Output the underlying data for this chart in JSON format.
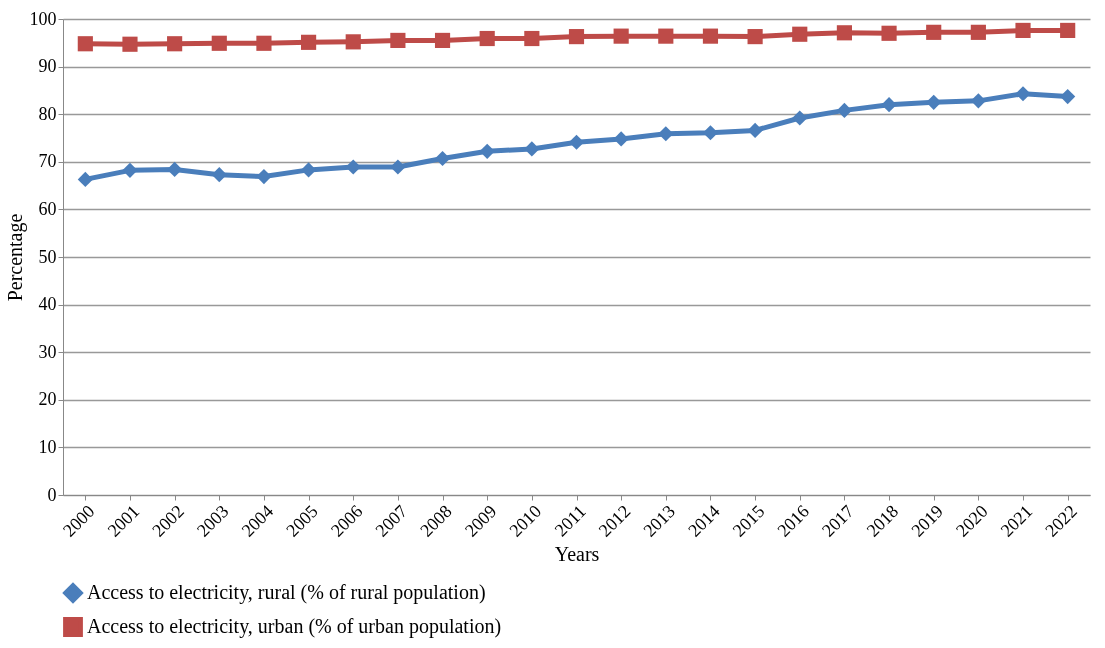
{
  "chart_data": {
    "type": "line",
    "xlabel": "Years",
    "ylabel": "Percentage",
    "categories": [
      "2000",
      "2001",
      "2002",
      "2003",
      "2004",
      "2005",
      "2006",
      "2007",
      "2008",
      "2009",
      "2010",
      "2011",
      "2012",
      "2013",
      "2014",
      "2015",
      "2016",
      "2017",
      "2018",
      "2019",
      "2020",
      "2021",
      "2022"
    ],
    "series": [
      {
        "name": "Access to electricity, rural (% of rural population)",
        "color": "#4a7ebb",
        "marker": "diamond",
        "values": [
          66.3,
          68.2,
          68.4,
          67.3,
          66.9,
          68.3,
          68.9,
          68.9,
          70.7,
          72.2,
          72.7,
          74.1,
          74.8,
          75.9,
          76.1,
          76.6,
          79.2,
          80.8,
          82.0,
          82.5,
          82.8,
          84.3,
          83.7
        ]
      },
      {
        "name": "Access to electricity, urban (% of urban population)",
        "color": "#be4b48",
        "marker": "square",
        "values": [
          94.8,
          94.7,
          94.8,
          94.9,
          94.9,
          95.1,
          95.2,
          95.5,
          95.5,
          95.9,
          95.9,
          96.3,
          96.4,
          96.4,
          96.4,
          96.3,
          96.8,
          97.1,
          97.0,
          97.2,
          97.2,
          97.6,
          97.6
        ]
      }
    ],
    "ylim": [
      0,
      100
    ],
    "yticks": [
      0,
      10,
      20,
      30,
      40,
      50,
      60,
      70,
      80,
      90,
      100
    ],
    "grid": "y",
    "legend": "bottom",
    "line_style": "solid"
  }
}
